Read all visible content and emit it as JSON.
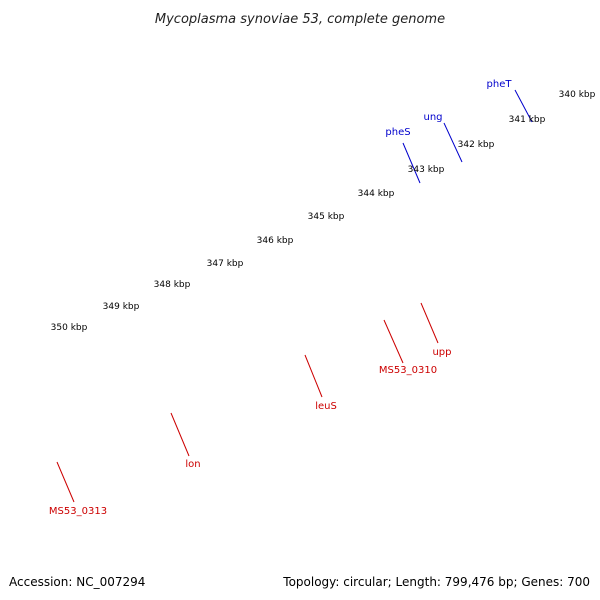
{
  "title": "Mycoplasma synoviae 53, complete genome",
  "footer": {
    "accession": "Accession: NC_007294",
    "details": "Topology: circular; Length: 799,476 bp; Genes: 700"
  },
  "colors": {
    "backbone": "#7a7a7a",
    "tick_major": "#1a8a1a",
    "tick_minor": "#1a8a1a",
    "label_forward": "#0000cc",
    "label_reverse": "#cc0000",
    "leader_forward": "#0000cc",
    "leader_reverse": "#cc0000"
  },
  "kbp_labels": [
    "340 kbp",
    "341 kbp",
    "342 kbp",
    "343 kbp",
    "344 kbp",
    "345 kbp",
    "346 kbp",
    "347 kbp",
    "348 kbp",
    "349 kbp",
    "350 kbp"
  ],
  "features": [
    {
      "name": "seg-top-dark-blue-a",
      "color": "#0000cc"
    },
    {
      "name": "seg-top-dark-blue-b",
      "color": "#0000cc"
    },
    {
      "name": "seg-top-dark-blue-c",
      "color": "#0000cc"
    },
    {
      "name": "seg-top-salmon-a",
      "color": "#e07a7a"
    },
    {
      "name": "seg-top-magenta",
      "color": "#e0128c"
    },
    {
      "name": "seg-top-salmon-b",
      "color": "#e07a7a"
    },
    {
      "name": "gene-lon",
      "color": "#e00000"
    },
    {
      "name": "gene-leus-red",
      "color": "#e00000"
    },
    {
      "name": "gene-red-mid",
      "color": "#e00000"
    },
    {
      "name": "gene-red-small",
      "color": "#e00000"
    },
    {
      "name": "gene-ms53-0313",
      "color": "#e00000"
    },
    {
      "name": "gene-lon-olive",
      "color": "#a8a060"
    },
    {
      "name": "gene-leus-salmon",
      "color": "#e58888"
    },
    {
      "name": "gene-upp-cyan",
      "color": "#11aadd"
    }
  ],
  "gene_labels": [
    {
      "text": "pheT",
      "strand": "forward"
    },
    {
      "text": "ung",
      "strand": "forward"
    },
    {
      "text": "pheS",
      "strand": "forward"
    },
    {
      "text": "upp",
      "strand": "reverse"
    },
    {
      "text": "MS53_0310",
      "strand": "reverse"
    },
    {
      "text": "leuS",
      "strand": "reverse"
    },
    {
      "text": "lon",
      "strand": "reverse"
    },
    {
      "text": "MS53_0313",
      "strand": "reverse"
    }
  ]
}
